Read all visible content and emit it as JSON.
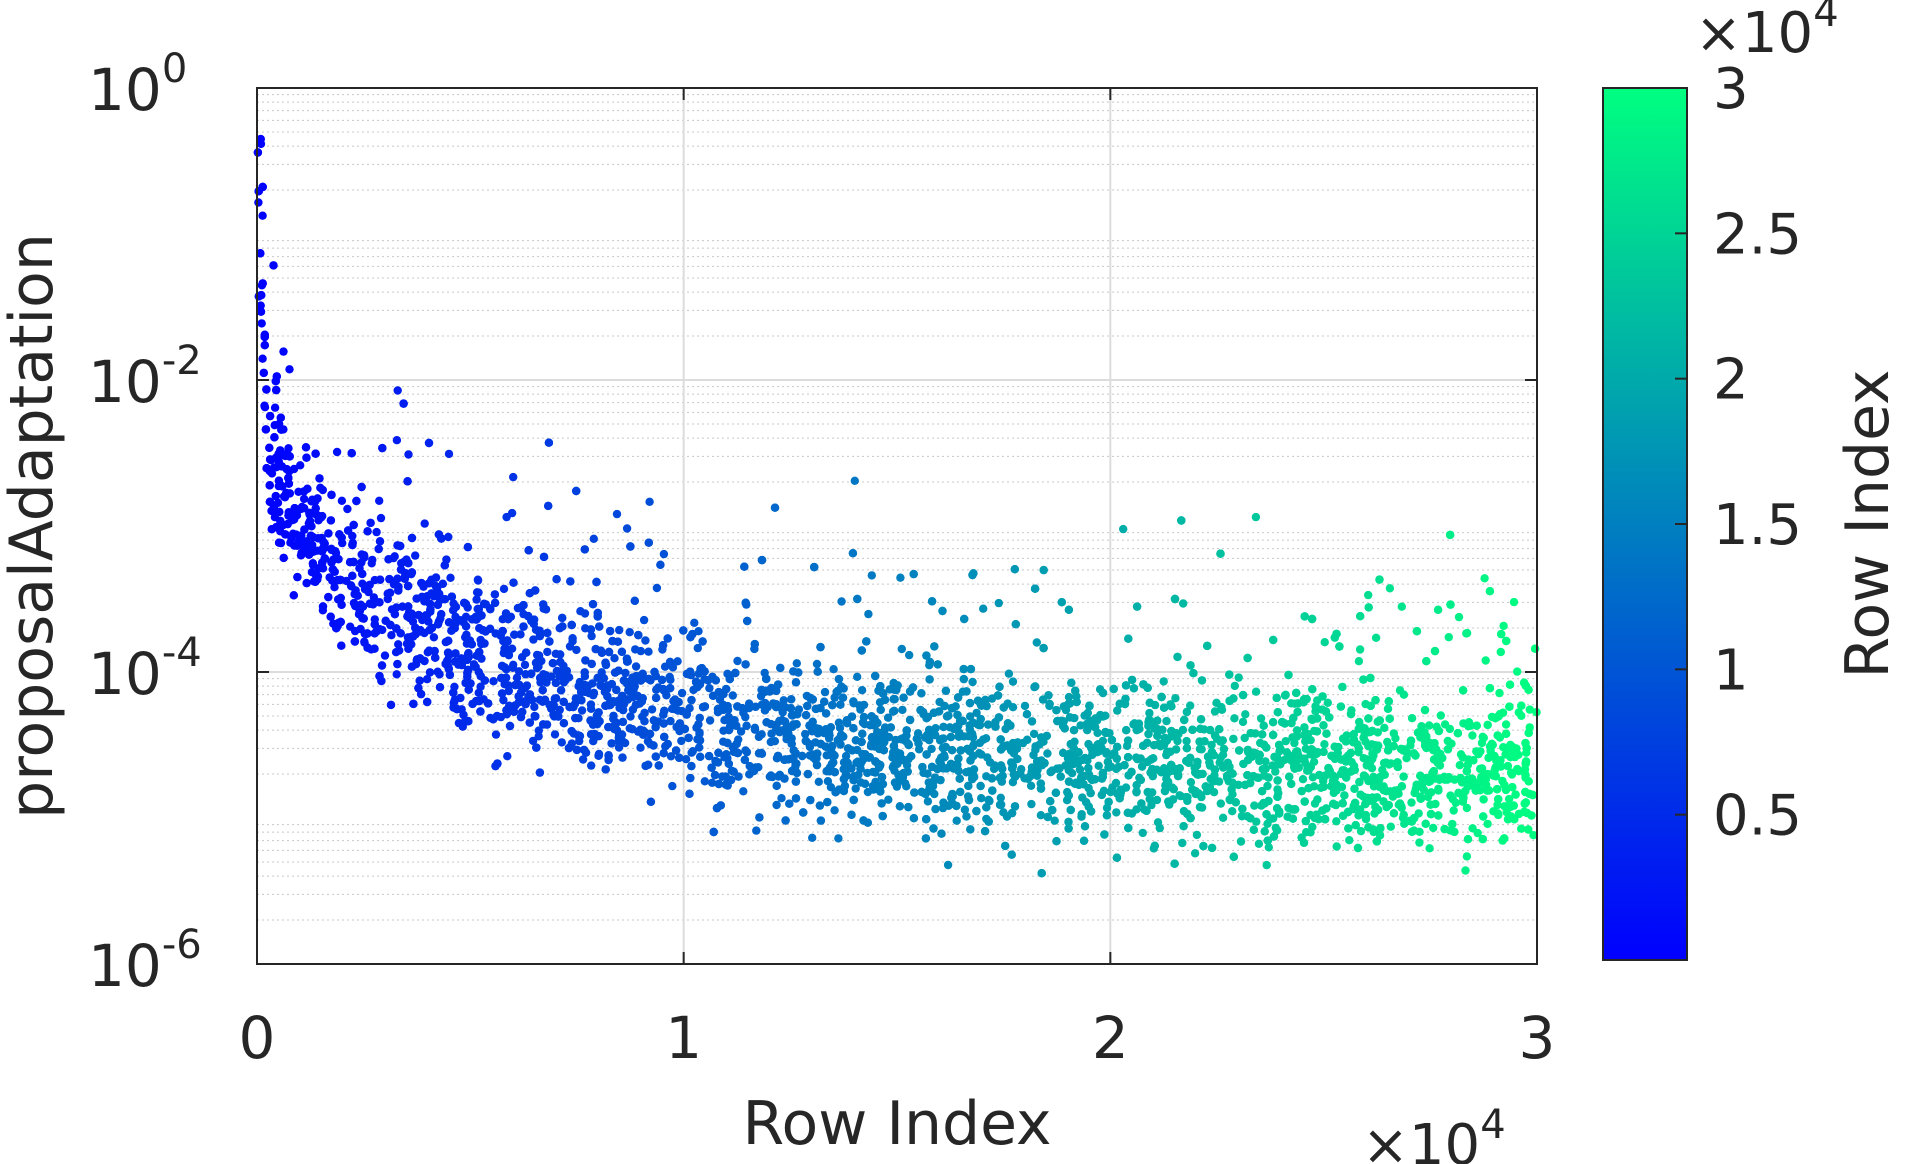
{
  "chart_data": {
    "type": "scatter",
    "title": "",
    "xlabel": "Row Index",
    "ylabel": "proposalAdaptation",
    "x_exponent_label": "×10",
    "x_exponent_power": "4",
    "xlim": [
      0,
      30000
    ],
    "ylim": [
      1e-06,
      1
    ],
    "y_scale": "log",
    "x_ticks": [
      0,
      10000,
      20000,
      30000
    ],
    "x_tick_labels": [
      "0",
      "1",
      "2",
      "3"
    ],
    "y_ticks": [
      1e-06,
      0.0001,
      0.01,
      1
    ],
    "y_tick_labels": [
      {
        "base": "10",
        "exp": "-6"
      },
      {
        "base": "10",
        "exp": "-4"
      },
      {
        "base": "10",
        "exp": "-2"
      },
      {
        "base": "10",
        "exp": "0"
      }
    ],
    "grid": true,
    "minor_grid": true,
    "colorbar": {
      "label": "Row Index",
      "exponent_label": "×10",
      "exponent_power": "4",
      "min": 0,
      "max": 30000,
      "ticks": [
        5000,
        10000,
        15000,
        20000,
        25000,
        30000
      ],
      "tick_labels": [
        "0.5",
        "1",
        "1.5",
        "2",
        "2.5",
        "3"
      ],
      "color_low": "#0000ff",
      "color_high": "#00ff80",
      "colormap": "winter"
    },
    "series": [
      {
        "n_points": 30000,
        "trend_x": [
          0,
          200,
          500,
          1000,
          2000,
          3000,
          5000,
          7500,
          10000,
          12500,
          15000,
          20000,
          25000,
          30000
        ],
        "trend_median_y": [
          0.3,
          0.006,
          0.002,
          0.001,
          0.0005,
          0.0003,
          0.00013,
          8e-05,
          5e-05,
          3.7e-05,
          3e-05,
          2.5e-05,
          2.2e-05,
          2e-05
        ],
        "log10_spread": 0.38,
        "color_by": "x"
      }
    ]
  }
}
